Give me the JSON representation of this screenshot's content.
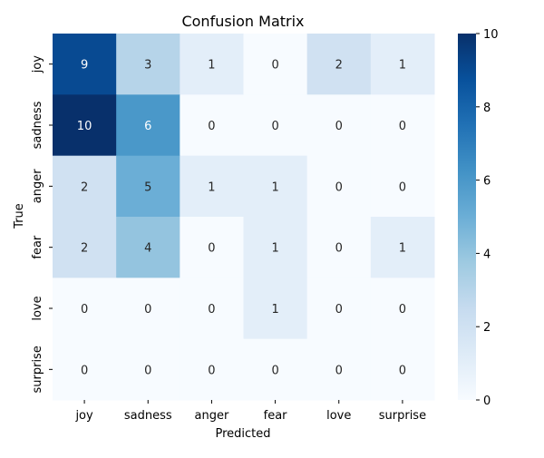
{
  "chart_data": {
    "type": "heatmap",
    "title": "Confusion Matrix",
    "xlabel": "Predicted",
    "ylabel": "True",
    "x_categories": [
      "joy",
      "sadness",
      "anger",
      "fear",
      "love",
      "surprise"
    ],
    "y_categories": [
      "joy",
      "sadness",
      "anger",
      "fear",
      "love",
      "surprise"
    ],
    "values": [
      [
        9,
        3,
        1,
        0,
        2,
        1
      ],
      [
        10,
        6,
        0,
        0,
        0,
        0
      ],
      [
        2,
        5,
        1,
        1,
        0,
        0
      ],
      [
        2,
        4,
        0,
        1,
        0,
        1
      ],
      [
        0,
        0,
        0,
        1,
        0,
        0
      ],
      [
        0,
        0,
        0,
        0,
        0,
        0
      ]
    ],
    "colorbar": {
      "range": [
        0,
        10
      ],
      "ticks": [
        0,
        2,
        4,
        6,
        8,
        10
      ],
      "colormap": "Blues"
    },
    "grid": false
  }
}
